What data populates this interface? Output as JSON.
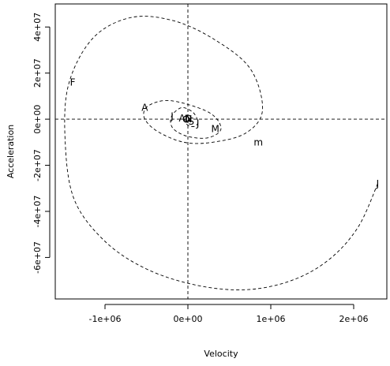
{
  "chart_data": {
    "type": "line",
    "xlabel": "Velocity",
    "ylabel": "Acceleration",
    "xlim": [
      -1600000,
      2400000
    ],
    "ylim": [
      -78000000,
      50000000
    ],
    "x_ticks": [
      {
        "value": -1000000,
        "label": "-1e+06"
      },
      {
        "value": 0,
        "label": "0e+00"
      },
      {
        "value": 1000000,
        "label": "1e+06"
      },
      {
        "value": 2000000,
        "label": "2e+06"
      }
    ],
    "y_ticks": [
      {
        "value": -60000000,
        "label": "-6e+07"
      },
      {
        "value": -40000000,
        "label": "-4e+07"
      },
      {
        "value": -20000000,
        "label": "-2e+07"
      },
      {
        "value": 0,
        "label": "0e+00"
      },
      {
        "value": 20000000,
        "label": "2e+07"
      },
      {
        "value": 40000000,
        "label": "4e+07"
      }
    ],
    "reference_lines": {
      "x": 0,
      "y": 0
    },
    "series": [
      {
        "line_style": "dashed",
        "x": [
          2290000,
          2050000,
          1700000,
          1250000,
          700000,
          100000,
          -500000,
          -1000000,
          -1370000,
          -1480000,
          -1440000,
          -1150000,
          -700000,
          -200000,
          300000,
          750000,
          900000,
          700000,
          300000,
          -50000,
          -380000,
          -530000,
          -470000,
          -200000,
          250000,
          400000,
          250000,
          0,
          -180000,
          -200000,
          -80000,
          60000,
          120000,
          90000,
          20000,
          -30000,
          -40000,
          -20000,
          10000,
          20000
        ],
        "y": [
          -28000000,
          -47000000,
          -61000000,
          -70000000,
          -74000000,
          -72000000,
          -65000000,
          -53000000,
          -35000000,
          -10000000,
          15000000,
          35000000,
          44000000,
          43000000,
          35000000,
          22000000,
          4000000,
          -6000000,
          -10000000,
          -10000000,
          -5000000,
          1000000,
          6000000,
          8000000,
          3000000,
          -4000000,
          -8000000,
          -7500000,
          -4000000,
          1000000,
          5000000,
          3000000,
          -1000000,
          -3000000,
          -3000000,
          -1500000,
          500000,
          1500000,
          500000,
          -300000
        ]
      }
    ],
    "point_labels": [
      {
        "label": "J",
        "x": 2290000,
        "y": -28000000
      },
      {
        "label": "m",
        "x": 850000,
        "y": -10000000
      },
      {
        "label": "F",
        "x": -1390000,
        "y": 16000000
      },
      {
        "label": "A",
        "x": -520000,
        "y": 5000000
      },
      {
        "label": "M",
        "x": 330000,
        "y": -4300000
      },
      {
        "label": "J",
        "x": -190000,
        "y": 1300000
      },
      {
        "label": "J",
        "x": 120000,
        "y": -1900000
      },
      {
        "label": "A",
        "x": -70000,
        "y": 400000
      },
      {
        "label": "S",
        "x": 40000,
        "y": -1000000
      },
      {
        "label": "O",
        "x": -20000,
        "y": -200000
      },
      {
        "label": "N",
        "x": 10000,
        "y": 0
      },
      {
        "label": "D",
        "x": 5000,
        "y": 200000
      }
    ]
  }
}
